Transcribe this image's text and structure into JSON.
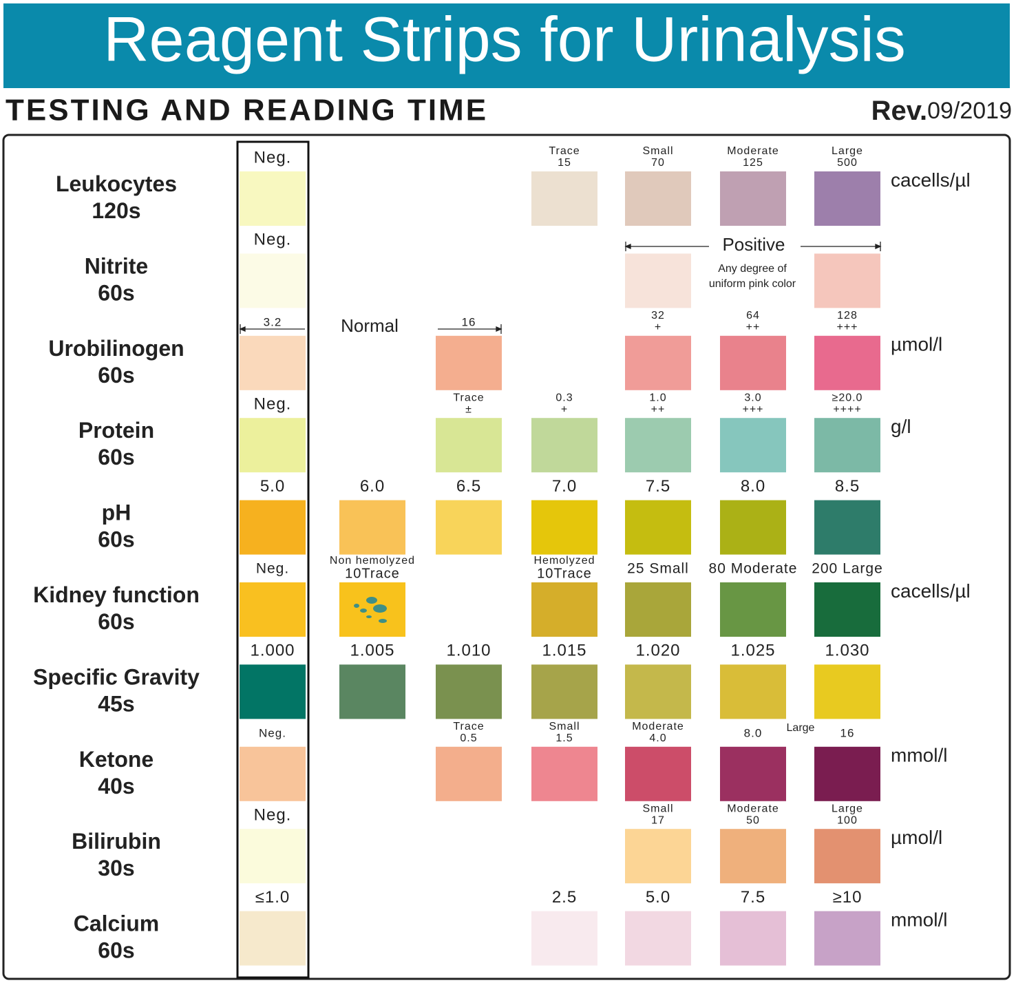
{
  "header": {
    "title": "Reagent Strips for Urinalysis",
    "subtitle": "TESTING AND READING TIME",
    "revision_prefix": "Rev.",
    "revision_date": "09/2019"
  },
  "rows": [
    {
      "name": "Leukocytes",
      "time": "120s",
      "unit": "cacells/µl",
      "cells": [
        {
          "labels": [
            "Neg."
          ],
          "color": "#f8f8c0"
        },
        null,
        null,
        {
          "labels": [
            "Trace",
            "15"
          ],
          "color": "#ece0d0"
        },
        {
          "labels": [
            "Small",
            "70"
          ],
          "color": "#e0c9bb"
        },
        {
          "labels": [
            "Moderate",
            "125"
          ],
          "color": "#bfa0b2"
        },
        {
          "labels": [
            "Large",
            "500"
          ],
          "color": "#9d7fab"
        }
      ]
    },
    {
      "name": "Nitrite",
      "time": "60s",
      "notes": [
        "Positive",
        "Any degree of",
        "uniform pink color"
      ],
      "cells": [
        {
          "labels": [
            "Neg."
          ],
          "color": "#fcfbe6"
        },
        null,
        null,
        null,
        {
          "labels": [],
          "color": "#f7e3da"
        },
        null,
        {
          "labels": [],
          "color": "#f5c6bc"
        }
      ]
    },
    {
      "name": "Urobilinogen",
      "time": "60s",
      "unit": "µmol/l",
      "notes": [
        "Normal"
      ],
      "cells": [
        {
          "labels": [
            "3.2"
          ],
          "color": "#fad9bb"
        },
        null,
        {
          "labels": [
            "16"
          ],
          "color": "#f4ae8f"
        },
        null,
        {
          "labels": [
            "32",
            "+"
          ],
          "color": "#f09c98"
        },
        {
          "labels": [
            "64",
            "++"
          ],
          "color": "#e9828c"
        },
        {
          "labels": [
            "128",
            "+++"
          ],
          "color": "#e86a8e"
        }
      ]
    },
    {
      "name": "Protein",
      "time": "60s",
      "unit": "g/l",
      "cells": [
        {
          "labels": [
            "Neg."
          ],
          "color": "#ecf09c"
        },
        null,
        {
          "labels": [
            "Trace",
            "±"
          ],
          "color": "#d8e695"
        },
        {
          "labels": [
            "0.3",
            "+"
          ],
          "color": "#c0d89a"
        },
        {
          "labels": [
            "1.0",
            "++"
          ],
          "color": "#9ccbaf"
        },
        {
          "labels": [
            "3.0",
            "+++"
          ],
          "color": "#86c6bd"
        },
        {
          "labels": [
            "≥20.0",
            "++++"
          ],
          "color": "#7cb9a6"
        }
      ]
    },
    {
      "name": "pH",
      "time": "60s",
      "cells": [
        {
          "labels": [
            "5.0"
          ],
          "color": "#f6b11f"
        },
        {
          "labels": [
            "6.0"
          ],
          "color": "#f9c257"
        },
        {
          "labels": [
            "6.5"
          ],
          "color": "#f8d45a"
        },
        {
          "labels": [
            "7.0"
          ],
          "color": "#e5c60b"
        },
        {
          "labels": [
            "7.5"
          ],
          "color": "#c5bd10"
        },
        {
          "labels": [
            "8.0"
          ],
          "color": "#abb116"
        },
        {
          "labels": [
            "8.5"
          ],
          "color": "#2e7c6a"
        }
      ]
    },
    {
      "name": "Kidney function",
      "time": "60s",
      "unit": "cacells/µl",
      "cells": [
        {
          "labels": [
            "Neg."
          ],
          "color": "#f9c020"
        },
        {
          "labels": [
            "Non hemolyzed",
            "10Trace"
          ],
          "color": "#f8c21c"
        },
        null,
        {
          "labels": [
            "Hemolyzed",
            "10Trace"
          ],
          "color": "#d5ae2a"
        },
        {
          "labels": [
            "25 Small"
          ],
          "color": "#a9a63a"
        },
        {
          "labels": [
            "80 Moderate"
          ],
          "color": "#689644"
        },
        {
          "labels": [
            "200 Large"
          ],
          "color": "#186c3c"
        }
      ]
    },
    {
      "name": "Specific Gravity",
      "time": "45s",
      "cells": [
        {
          "labels": [
            "1.000"
          ],
          "color": "#027565"
        },
        {
          "labels": [
            "1.005"
          ],
          "color": "#5a8661"
        },
        {
          "labels": [
            "1.010"
          ],
          "color": "#7a914f"
        },
        {
          "labels": [
            "1.015"
          ],
          "color": "#a6a44a"
        },
        {
          "labels": [
            "1.020"
          ],
          "color": "#c4b84b"
        },
        {
          "labels": [
            "1.025"
          ],
          "color": "#d9bd38"
        },
        {
          "labels": [
            "1.030"
          ],
          "color": "#e8ca20"
        }
      ]
    },
    {
      "name": "Ketone",
      "time": "40s",
      "unit": "mmol/l",
      "notes": [
        "Large"
      ],
      "cells": [
        {
          "labels": [
            "Neg."
          ],
          "color": "#f8c49a"
        },
        null,
        {
          "labels": [
            "Trace",
            "0.5"
          ],
          "color": "#f3ae8c"
        },
        {
          "labels": [
            "Small",
            "1.5"
          ],
          "color": "#ee8690"
        },
        {
          "labels": [
            "Moderate",
            "4.0"
          ],
          "color": "#cc4d69"
        },
        {
          "labels": [
            "8.0"
          ],
          "color": "#9b3060"
        },
        {
          "labels": [
            "16"
          ],
          "color": "#7a1d50"
        }
      ]
    },
    {
      "name": "Bilirubin",
      "time": "30s",
      "unit": "µmol/l",
      "cells": [
        {
          "labels": [
            "Neg."
          ],
          "color": "#fbfbdc"
        },
        null,
        null,
        null,
        {
          "labels": [
            "Small",
            "17"
          ],
          "color": "#fcd595"
        },
        {
          "labels": [
            "Moderate",
            "50"
          ],
          "color": "#efb07c"
        },
        {
          "labels": [
            "Large",
            "100"
          ],
          "color": "#e39170"
        }
      ]
    },
    {
      "name": "Calcium",
      "time": "60s",
      "unit": "mmol/l",
      "cells": [
        {
          "labels": [
            "≤1.0"
          ],
          "color": "#f6e9cc"
        },
        null,
        null,
        {
          "labels": [
            "2.5"
          ],
          "color": "#f8eaee"
        },
        {
          "labels": [
            "5.0"
          ],
          "color": "#f2d8e2"
        },
        {
          "labels": [
            "7.5"
          ],
          "color": "#e5bfd6"
        },
        {
          "labels": [
            "≥10"
          ],
          "color": "#c7a2c7"
        }
      ]
    }
  ]
}
